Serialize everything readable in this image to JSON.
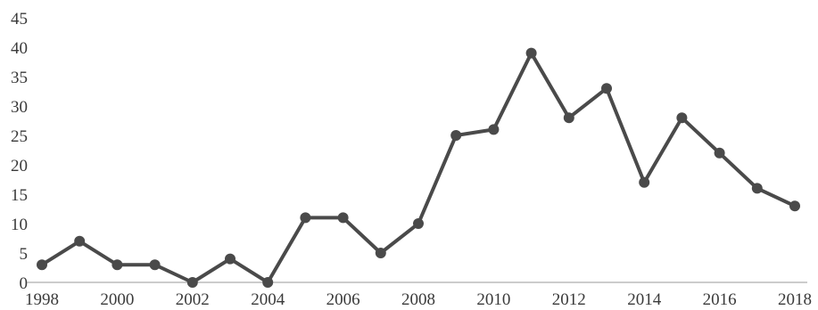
{
  "chart_data": {
    "type": "line",
    "title": "",
    "xlabel": "",
    "ylabel": "",
    "x": [
      1998,
      1999,
      2000,
      2001,
      2002,
      2003,
      2004,
      2005,
      2006,
      2007,
      2008,
      2009,
      2010,
      2011,
      2012,
      2013,
      2014,
      2015,
      2016,
      2017,
      2018
    ],
    "series": [
      {
        "values": [
          3,
          7,
          3,
          3,
          0,
          4,
          0,
          11,
          11,
          5,
          10,
          25,
          26,
          39,
          28,
          33,
          17,
          28,
          22,
          16,
          13
        ]
      }
    ],
    "xlim": [
      1998,
      2018
    ],
    "ylim": [
      0,
      45
    ],
    "yticks": [
      0,
      5,
      10,
      15,
      20,
      25,
      30,
      35,
      40,
      45
    ],
    "xticks": [
      1998,
      2000,
      2002,
      2004,
      2006,
      2008,
      2010,
      2012,
      2014,
      2016,
      2018
    ],
    "grid": false,
    "legend": "none",
    "line_color": "#4a4a4a",
    "marker": "circle"
  }
}
